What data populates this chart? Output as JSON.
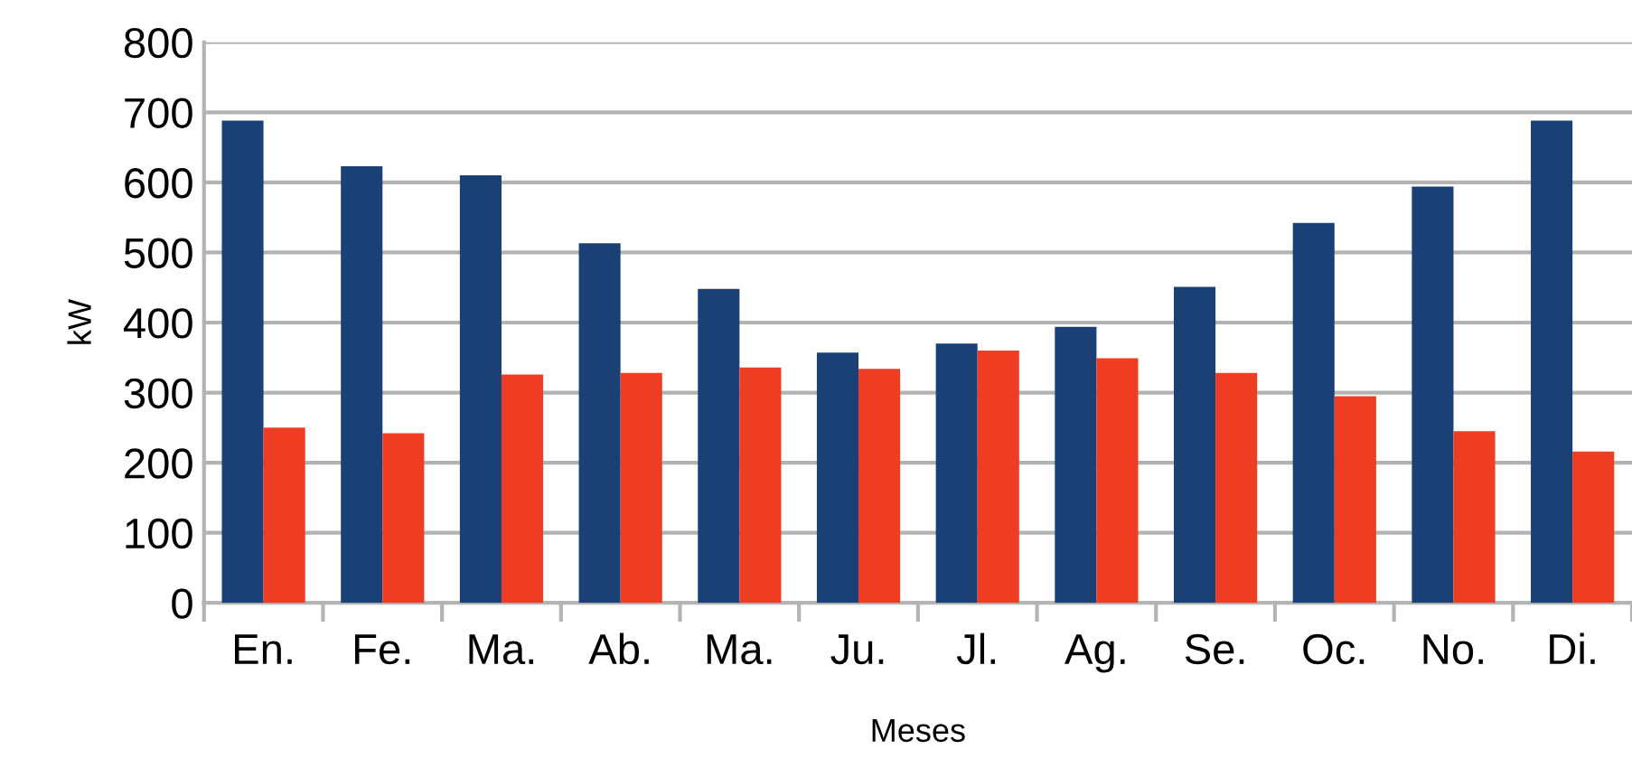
{
  "chart_data": {
    "type": "bar",
    "xlabel": "Meses",
    "ylabel": "kW",
    "categories": [
      "En.",
      "Fe.",
      "Ma.",
      "Ab.",
      "Ma.",
      "Ju.",
      "Jl.",
      "Ag.",
      "Se.",
      "Oc.",
      "No.",
      "Di."
    ],
    "series": [
      {
        "color": "#1a4076",
        "values": [
          688,
          623,
          610,
          513,
          448,
          357,
          370,
          394,
          451,
          542,
          594,
          688
        ]
      },
      {
        "color": "#ee3d23",
        "values": [
          250,
          242,
          326,
          328,
          336,
          334,
          360,
          349,
          328,
          295,
          245,
          216
        ]
      }
    ],
    "ylim": [
      0,
      800
    ],
    "yticks": [
      0,
      100,
      200,
      300,
      400,
      500,
      600,
      700,
      800
    ],
    "grid": "y",
    "legend": false
  }
}
